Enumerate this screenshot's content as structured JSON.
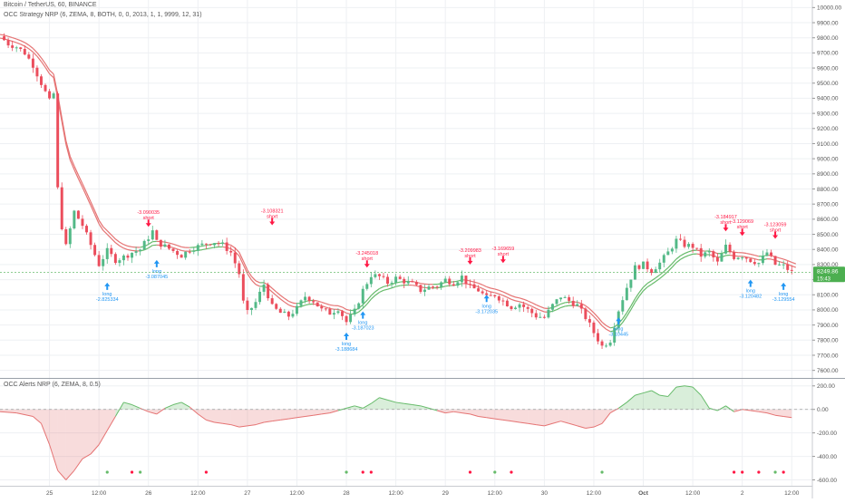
{
  "header": {
    "symbol_line": "Bitcoin / TetherUS, 60, BINANCE",
    "strategy_line": "OCC Strategy NRP (6, ZEMA, 8, BOTH, 0, 0, 2013, 1, 1, 9999, 12, 31)",
    "indicator_line": "OCC Alerts NRP (6, ZEMA, 8, 0.5)"
  },
  "price_axis": {
    "ticks": [
      "10000.00",
      "9900.00",
      "9800.00",
      "9700.00",
      "9600.00",
      "9500.00",
      "9400.00",
      "9300.00",
      "9200.00",
      "9100.00",
      "9000.00",
      "8900.00",
      "8800.00",
      "8700.00",
      "8600.00",
      "8500.00",
      "8400.00",
      "8300.00",
      "8200.00",
      "8100.00",
      "8000.00",
      "7900.00",
      "7800.00",
      "7700.00",
      "7600.00"
    ],
    "last_price": "8249.86",
    "last_sub": "15:43"
  },
  "osc_axis": {
    "ticks": [
      "200.00",
      "0.00",
      "-200.00",
      "-400.00",
      "-600.00"
    ]
  },
  "time_axis": {
    "labels": [
      "25",
      "12:00",
      "26",
      "12:00",
      "27",
      "12:00",
      "28",
      "12:00",
      "29",
      "12:00",
      "30",
      "12:00",
      "Oct",
      "12:00",
      "2",
      "12:00"
    ]
  },
  "signals": [
    {
      "text": "long",
      "value": "-2.825334"
    },
    {
      "text": "short",
      "value": "-3.090035"
    },
    {
      "text": "long",
      "value": "-3.087045"
    },
    {
      "text": "short",
      "value": "-3.108321"
    },
    {
      "text": "long",
      "value": "-3.188684"
    },
    {
      "text": "long",
      "value": "-3.187023"
    },
    {
      "text": "short",
      "value": "-3.245018"
    },
    {
      "text": "short",
      "value": "-3.209983"
    },
    {
      "text": "long",
      "value": "-3.172035"
    },
    {
      "text": "short",
      "value": "-3.169659"
    },
    {
      "text": "long",
      "value": "-3.10445"
    },
    {
      "text": "short",
      "value": "-3.184917"
    },
    {
      "text": "short",
      "value": "-3.129069"
    },
    {
      "text": "long",
      "value": "-3.120482"
    },
    {
      "text": "short",
      "value": "-3.123059"
    },
    {
      "text": "long",
      "value": "-3.129554"
    }
  ],
  "colors": {
    "up_candle": "#53b987",
    "down_candle": "#eb4d5c",
    "long_signal": "#2196f3",
    "short_signal": "#ff1744",
    "ma_bear": "#e57373",
    "ma_bull": "#66bb6a",
    "grid": "#eef0f3",
    "price_badge": "#4caf50"
  },
  "chart_data": {
    "type": "candlestick",
    "price_ylim": [
      7550,
      10050
    ],
    "osc_ylim": [
      -650,
      260
    ],
    "x_range_hours": [
      -12,
      185
    ],
    "x_ticks_hours": [
      0,
      12,
      24,
      36,
      48,
      60,
      72,
      84,
      96,
      108,
      120,
      132,
      144,
      156,
      168,
      180
    ],
    "grid": true,
    "close_path": [
      [
        -12,
        9810
      ],
      [
        -10,
        9760
      ],
      [
        -8,
        9740
      ],
      [
        -6,
        9700
      ],
      [
        -4,
        9620
      ],
      [
        -2,
        9500
      ],
      [
        0,
        9380
      ],
      [
        1,
        9430
      ],
      [
        2,
        8800
      ],
      [
        3,
        8550
      ],
      [
        4,
        8420
      ],
      [
        6,
        8650
      ],
      [
        8,
        8560
      ],
      [
        10,
        8430
      ],
      [
        12,
        8300
      ],
      [
        14,
        8390
      ],
      [
        16,
        8330
      ],
      [
        18,
        8350
      ],
      [
        20,
        8380
      ],
      [
        22,
        8400
      ],
      [
        24,
        8480
      ],
      [
        25,
        8520
      ],
      [
        26,
        8450
      ],
      [
        28,
        8420
      ],
      [
        30,
        8390
      ],
      [
        32,
        8360
      ],
      [
        34,
        8400
      ],
      [
        36,
        8420
      ],
      [
        38,
        8440
      ],
      [
        40,
        8450
      ],
      [
        42,
        8430
      ],
      [
        44,
        8380
      ],
      [
        46,
        8240
      ],
      [
        47,
        8050
      ],
      [
        48,
        7980
      ],
      [
        50,
        8050
      ],
      [
        52,
        8170
      ],
      [
        54,
        8020
      ],
      [
        56,
        7980
      ],
      [
        58,
        7960
      ],
      [
        60,
        8010
      ],
      [
        62,
        8090
      ],
      [
        64,
        8060
      ],
      [
        66,
        8000
      ],
      [
        68,
        7980
      ],
      [
        70,
        8010
      ],
      [
        72,
        7920
      ],
      [
        74,
        7990
      ],
      [
        76,
        8130
      ],
      [
        78,
        8230
      ],
      [
        80,
        8220
      ],
      [
        82,
        8180
      ],
      [
        84,
        8210
      ],
      [
        86,
        8190
      ],
      [
        88,
        8170
      ],
      [
        90,
        8130
      ],
      [
        92,
        8150
      ],
      [
        94,
        8160
      ],
      [
        96,
        8200
      ],
      [
        98,
        8180
      ],
      [
        100,
        8220
      ],
      [
        102,
        8150
      ],
      [
        104,
        8130
      ],
      [
        106,
        8080
      ],
      [
        108,
        8100
      ],
      [
        110,
        8060
      ],
      [
        112,
        8020
      ],
      [
        114,
        8040
      ],
      [
        116,
        8000
      ],
      [
        118,
        7960
      ],
      [
        120,
        7950
      ],
      [
        122,
        8030
      ],
      [
        124,
        8090
      ],
      [
        126,
        8060
      ],
      [
        128,
        8030
      ],
      [
        130,
        7950
      ],
      [
        132,
        7850
      ],
      [
        134,
        7760
      ],
      [
        136,
        7800
      ],
      [
        138,
        8000
      ],
      [
        140,
        8150
      ],
      [
        142,
        8280
      ],
      [
        144,
        8300
      ],
      [
        146,
        8260
      ],
      [
        148,
        8310
      ],
      [
        150,
        8380
      ],
      [
        152,
        8460
      ],
      [
        154,
        8430
      ],
      [
        156,
        8420
      ],
      [
        158,
        8360
      ],
      [
        160,
        8380
      ],
      [
        162,
        8310
      ],
      [
        164,
        8420
      ],
      [
        166,
        8350
      ],
      [
        168,
        8360
      ],
      [
        170,
        8330
      ],
      [
        172,
        8310
      ],
      [
        174,
        8380
      ],
      [
        176,
        8300
      ],
      [
        178,
        8290
      ],
      [
        180,
        8250
      ]
    ],
    "osc_series": [
      [
        -12,
        -20
      ],
      [
        -8,
        -30
      ],
      [
        -4,
        -60
      ],
      [
        -2,
        -120
      ],
      [
        0,
        -300
      ],
      [
        2,
        -520
      ],
      [
        4,
        -600
      ],
      [
        6,
        -520
      ],
      [
        8,
        -420
      ],
      [
        10,
        -380
      ],
      [
        12,
        -300
      ],
      [
        14,
        -180
      ],
      [
        16,
        -60
      ],
      [
        18,
        60
      ],
      [
        20,
        40
      ],
      [
        22,
        10
      ],
      [
        24,
        -20
      ],
      [
        26,
        -40
      ],
      [
        28,
        10
      ],
      [
        30,
        40
      ],
      [
        32,
        60
      ],
      [
        34,
        20
      ],
      [
        36,
        -40
      ],
      [
        38,
        -90
      ],
      [
        40,
        -110
      ],
      [
        42,
        -120
      ],
      [
        44,
        -130
      ],
      [
        46,
        -150
      ],
      [
        48,
        -140
      ],
      [
        50,
        -130
      ],
      [
        52,
        -110
      ],
      [
        54,
        -100
      ],
      [
        56,
        -90
      ],
      [
        58,
        -80
      ],
      [
        60,
        -70
      ],
      [
        62,
        -60
      ],
      [
        64,
        -50
      ],
      [
        66,
        -40
      ],
      [
        68,
        -30
      ],
      [
        70,
        -10
      ],
      [
        72,
        10
      ],
      [
        74,
        30
      ],
      [
        76,
        10
      ],
      [
        78,
        50
      ],
      [
        80,
        100
      ],
      [
        82,
        80
      ],
      [
        84,
        60
      ],
      [
        86,
        50
      ],
      [
        88,
        40
      ],
      [
        90,
        30
      ],
      [
        92,
        10
      ],
      [
        94,
        -10
      ],
      [
        96,
        -30
      ],
      [
        98,
        -20
      ],
      [
        100,
        -30
      ],
      [
        102,
        -40
      ],
      [
        104,
        -60
      ],
      [
        106,
        -70
      ],
      [
        108,
        -80
      ],
      [
        110,
        -90
      ],
      [
        112,
        -100
      ],
      [
        114,
        -110
      ],
      [
        116,
        -120
      ],
      [
        118,
        -130
      ],
      [
        120,
        -140
      ],
      [
        122,
        -120
      ],
      [
        124,
        -100
      ],
      [
        126,
        -120
      ],
      [
        128,
        -140
      ],
      [
        130,
        -160
      ],
      [
        132,
        -150
      ],
      [
        134,
        -120
      ],
      [
        136,
        -30
      ],
      [
        138,
        10
      ],
      [
        140,
        60
      ],
      [
        142,
        120
      ],
      [
        144,
        140
      ],
      [
        146,
        160
      ],
      [
        148,
        120
      ],
      [
        150,
        110
      ],
      [
        152,
        190
      ],
      [
        154,
        200
      ],
      [
        156,
        190
      ],
      [
        158,
        120
      ],
      [
        160,
        10
      ],
      [
        162,
        -10
      ],
      [
        164,
        30
      ],
      [
        166,
        -20
      ],
      [
        168,
        0
      ],
      [
        170,
        -10
      ],
      [
        172,
        -20
      ],
      [
        174,
        -30
      ],
      [
        176,
        -50
      ],
      [
        178,
        -60
      ],
      [
        180,
        -70
      ]
    ],
    "osc_dots": [
      {
        "x": 14,
        "c": "bull"
      },
      {
        "x": 20,
        "c": "bear"
      },
      {
        "x": 22,
        "c": "bull"
      },
      {
        "x": 38,
        "c": "bear"
      },
      {
        "x": 72,
        "c": "bull"
      },
      {
        "x": 76,
        "c": "bear"
      },
      {
        "x": 78,
        "c": "bear"
      },
      {
        "x": 102,
        "c": "bear"
      },
      {
        "x": 108,
        "c": "bull"
      },
      {
        "x": 112,
        "c": "bear"
      },
      {
        "x": 134,
        "c": "bull"
      },
      {
        "x": 166,
        "c": "bear"
      },
      {
        "x": 168,
        "c": "bear"
      },
      {
        "x": 172,
        "c": "bear"
      },
      {
        "x": 176,
        "c": "bull"
      },
      {
        "x": 178,
        "c": "bear"
      }
    ],
    "signal_positions": [
      {
        "x": 14,
        "price": 8180
      },
      {
        "x": 24,
        "price": 8550
      },
      {
        "x": 26,
        "price": 8330
      },
      {
        "x": 54,
        "price": 8560
      },
      {
        "x": 72,
        "price": 7850
      },
      {
        "x": 76,
        "price": 7990
      },
      {
        "x": 77,
        "price": 8280
      },
      {
        "x": 102,
        "price": 8300
      },
      {
        "x": 106,
        "price": 8100
      },
      {
        "x": 110,
        "price": 8310
      },
      {
        "x": 138,
        "price": 7950
      },
      {
        "x": 164,
        "price": 8520
      },
      {
        "x": 168,
        "price": 8490
      },
      {
        "x": 170,
        "price": 8200
      },
      {
        "x": 176,
        "price": 8470
      },
      {
        "x": 178,
        "price": 8180
      }
    ]
  }
}
